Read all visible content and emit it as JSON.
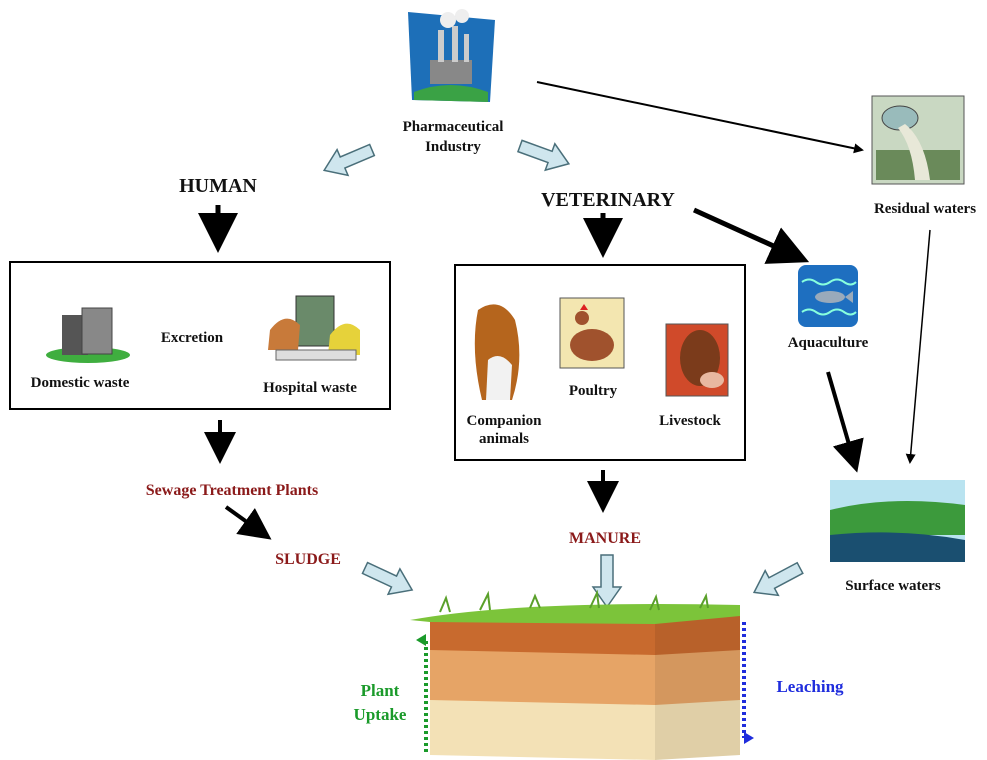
{
  "nodes": {
    "pharma": {
      "lines": [
        "Pharmaceutical",
        "Industry"
      ]
    },
    "residual": {
      "label": "Residual waters"
    },
    "human": {
      "label": "HUMAN"
    },
    "veterinary": {
      "label": "VETERINARY"
    },
    "excretion": {
      "label": "Excretion"
    },
    "domestic": {
      "label": "Domestic waste"
    },
    "hospital": {
      "label": "Hospital waste"
    },
    "companion": {
      "lines": [
        "Companion",
        "animals"
      ]
    },
    "poultry": {
      "label": "Poultry"
    },
    "livestock": {
      "label": "Livestock"
    },
    "aquaculture": {
      "label": "Aquaculture"
    },
    "stp": {
      "label": "Sewage Treatment Plants"
    },
    "sludge": {
      "label": "SLUDGE"
    },
    "manure": {
      "label": "MANURE"
    },
    "surface": {
      "label": "Surface waters"
    },
    "uptake": {
      "lines": [
        "Plant",
        "Uptake"
      ]
    },
    "leaching": {
      "label": "Leaching"
    }
  }
}
